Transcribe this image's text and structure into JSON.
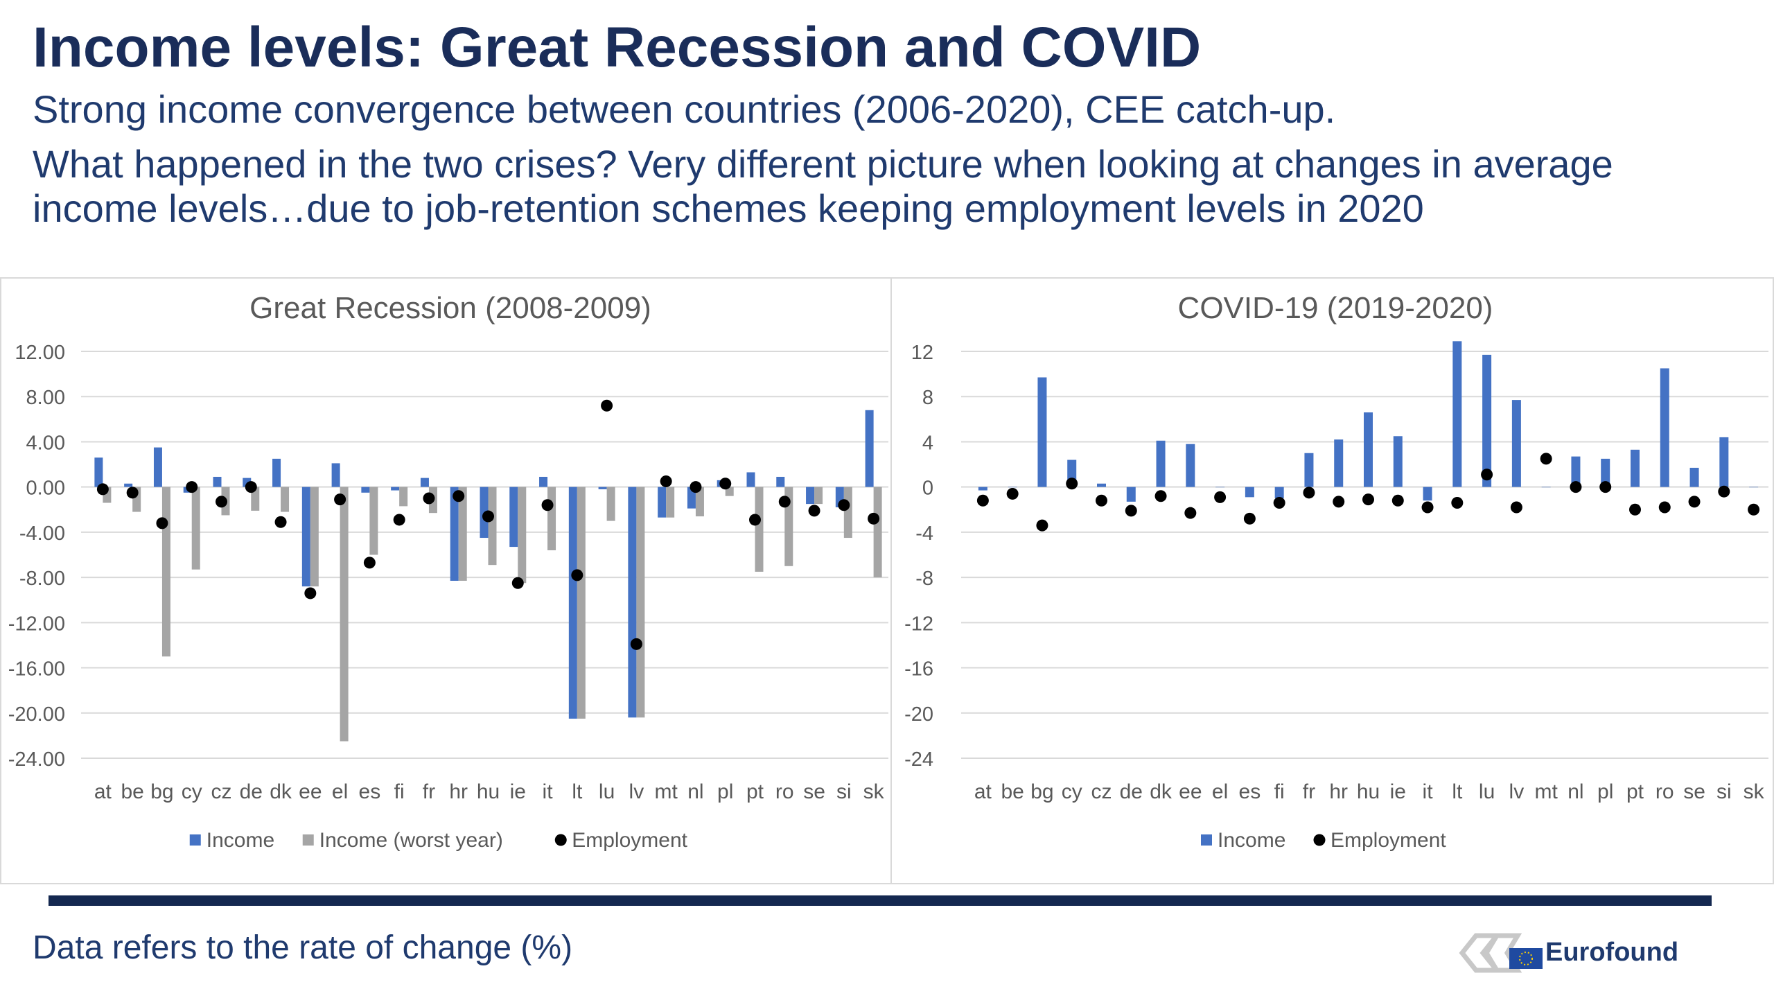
{
  "slide": {
    "title": "Income levels: Great Recession and COVID",
    "subtitle1": "Strong income convergence between countries (2006-2020), CEE catch-up.",
    "subtitle2": "What happened in the two crises? Very different picture when looking at changes in average income levels…due to job-retention schemes keeping employment levels in 2020",
    "footnote": "Data refers to the rate of change (%)",
    "logo_text": "Eurofound"
  },
  "colors": {
    "income": "#4472c4",
    "worst": "#a5a5a5",
    "employment": "#000000",
    "grid": "#d9d9d9",
    "axis_text": "#595959"
  },
  "chart_data": [
    {
      "type": "bar",
      "title": "Great Recession (2008-2009)",
      "categories": [
        "at",
        "be",
        "bg",
        "cy",
        "cz",
        "de",
        "dk",
        "ee",
        "el",
        "es",
        "fi",
        "fr",
        "hr",
        "hu",
        "ie",
        "it",
        "lt",
        "lu",
        "lv",
        "mt",
        "nl",
        "pl",
        "pt",
        "ro",
        "se",
        "si",
        "sk"
      ],
      "ylim": [
        -24,
        12
      ],
      "yticks": [
        "12.00",
        "8.00",
        "4.00",
        "0.00",
        "-4.00",
        "-8.00",
        "-12.00",
        "-16.00",
        "-20.00",
        "-24.00"
      ],
      "grid": true,
      "legend_position": "bottom",
      "series": [
        {
          "name": "Income",
          "kind": "bar",
          "values": [
            2.6,
            0.3,
            3.5,
            -0.5,
            0.9,
            0.8,
            2.5,
            -8.8,
            2.1,
            -0.5,
            -0.3,
            0.8,
            -8.3,
            -4.5,
            -5.3,
            0.9,
            -20.5,
            -0.2,
            -20.4,
            -2.7,
            -1.9,
            0.6,
            1.3,
            0.9,
            -1.5,
            -1.8,
            6.8
          ]
        },
        {
          "name": "Income (worst year)",
          "kind": "bar",
          "values": [
            -1.4,
            -2.2,
            -15.0,
            -7.3,
            -2.5,
            -2.1,
            -2.2,
            -8.8,
            -22.5,
            -6.0,
            -1.7,
            -2.3,
            -8.3,
            -6.9,
            -8.5,
            -5.6,
            -20.5,
            -3.0,
            -20.4,
            -2.7,
            -2.6,
            -0.8,
            -7.5,
            -7.0,
            -1.5,
            -4.5,
            -8.0
          ]
        },
        {
          "name": "Employment",
          "kind": "dot",
          "values": [
            -0.2,
            -0.5,
            -3.2,
            0.0,
            -1.3,
            0.0,
            -3.1,
            -9.4,
            -1.1,
            -6.7,
            -2.9,
            -1.0,
            -0.8,
            -2.6,
            -8.5,
            -1.6,
            -7.8,
            7.2,
            -13.9,
            0.5,
            0.0,
            0.3,
            -2.9,
            -1.3,
            -2.1,
            -1.6,
            -2.8
          ]
        }
      ]
    },
    {
      "type": "bar",
      "title": "COVID-19 (2019-2020)",
      "categories": [
        "at",
        "be",
        "bg",
        "cy",
        "cz",
        "de",
        "dk",
        "ee",
        "el",
        "es",
        "fi",
        "fr",
        "hr",
        "hu",
        "ie",
        "it",
        "lt",
        "lu",
        "lv",
        "mt",
        "nl",
        "pl",
        "pt",
        "ro",
        "se",
        "si",
        "sk"
      ],
      "ylim": [
        -24,
        12
      ],
      "yticks": [
        "12",
        "8",
        "4",
        "0",
        "-4",
        "-8",
        "-12",
        "-16",
        "-20",
        "-24"
      ],
      "grid": true,
      "legend_position": "bottom",
      "series": [
        {
          "name": "Income",
          "kind": "bar",
          "values": [
            -0.3,
            0.0,
            9.7,
            2.4,
            0.3,
            -1.3,
            4.1,
            3.8,
            0.0,
            -0.9,
            -1.0,
            3.0,
            4.2,
            6.6,
            4.5,
            -1.2,
            12.9,
            11.7,
            7.7,
            0.0,
            2.7,
            2.5,
            3.3,
            10.5,
            1.7,
            4.4,
            0.0
          ]
        },
        {
          "name": "Employment",
          "kind": "dot",
          "values": [
            -1.2,
            -0.6,
            -3.4,
            0.3,
            -1.2,
            -2.1,
            -0.8,
            -2.3,
            -0.9,
            -2.8,
            -1.4,
            -0.5,
            -1.3,
            -1.1,
            -1.2,
            -1.8,
            -1.4,
            1.1,
            -1.8,
            2.5,
            0.0,
            0.0,
            -2.0,
            -1.8,
            -1.3,
            -0.4,
            -2.0
          ]
        }
      ]
    }
  ]
}
